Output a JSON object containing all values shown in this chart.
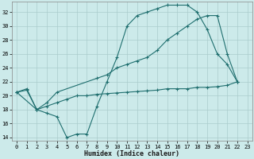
{
  "xlabel": "Humidex (Indice chaleur)",
  "bg_color": "#cceaea",
  "grid_color": "#aacccc",
  "line_color": "#1e6e6e",
  "xlim": [
    -0.5,
    23.5
  ],
  "ylim": [
    13.5,
    33.5
  ],
  "xticks": [
    0,
    1,
    2,
    3,
    4,
    5,
    6,
    7,
    8,
    9,
    10,
    11,
    12,
    13,
    14,
    15,
    16,
    17,
    18,
    19,
    20,
    21,
    22,
    23
  ],
  "yticks": [
    14,
    16,
    18,
    20,
    22,
    24,
    26,
    28,
    30,
    32
  ],
  "line1_x": [
    0,
    1,
    2,
    3,
    4,
    5,
    6,
    7,
    8,
    9,
    10,
    11,
    12,
    13,
    14,
    15,
    16,
    17,
    18,
    19,
    20,
    21,
    22
  ],
  "line1_y": [
    20.5,
    21.0,
    18.0,
    17.5,
    17.0,
    14.0,
    14.5,
    14.5,
    18.5,
    22.0,
    25.5,
    30.0,
    31.5,
    32.0,
    32.5,
    33.0,
    33.0,
    33.0,
    32.0,
    29.5,
    26.0,
    24.5,
    22.0
  ],
  "line2_x": [
    0,
    2,
    3,
    4,
    8,
    9,
    10,
    11,
    12,
    13,
    14,
    15,
    16,
    17,
    18,
    19,
    20,
    21,
    22
  ],
  "line2_y": [
    20.5,
    18.0,
    19.0,
    20.5,
    22.5,
    23.0,
    24.0,
    24.5,
    25.0,
    25.5,
    26.5,
    28.0,
    29.0,
    30.0,
    31.0,
    31.5,
    31.5,
    26.0,
    22.0
  ],
  "line3_x": [
    0,
    1,
    2,
    3,
    4,
    5,
    6,
    7,
    8,
    9,
    10,
    11,
    12,
    13,
    14,
    15,
    16,
    17,
    18,
    19,
    20,
    21,
    22
  ],
  "line3_y": [
    20.5,
    20.8,
    18.0,
    18.5,
    19.0,
    19.5,
    20.0,
    20.0,
    20.2,
    20.3,
    20.4,
    20.5,
    20.6,
    20.7,
    20.8,
    21.0,
    21.0,
    21.0,
    21.2,
    21.2,
    21.3,
    21.5,
    22.0
  ]
}
